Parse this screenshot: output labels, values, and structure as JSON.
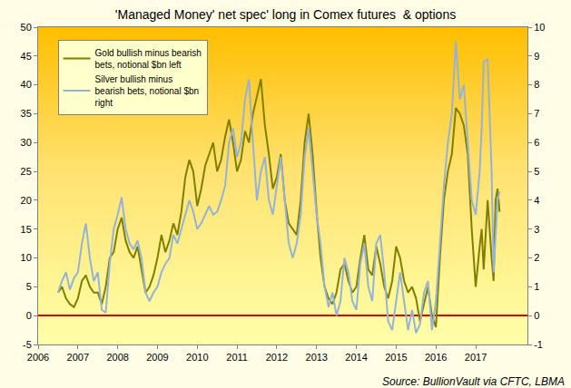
{
  "chart_data": {
    "type": "line",
    "title": "'Managed Money' net spec' long in Comex futures  & options",
    "annotations": [
      "Source: BullionVault via CFTC, LBMA"
    ],
    "x": [
      2006.5,
      2006.6,
      2006.7,
      2006.8,
      2006.9,
      2007.0,
      2007.1,
      2007.2,
      2007.3,
      2007.4,
      2007.5,
      2007.6,
      2007.7,
      2007.8,
      2007.9,
      2008.0,
      2008.1,
      2008.2,
      2008.3,
      2008.4,
      2008.5,
      2008.6,
      2008.7,
      2008.8,
      2008.9,
      2009.0,
      2009.1,
      2009.2,
      2009.3,
      2009.4,
      2009.5,
      2009.6,
      2009.7,
      2009.8,
      2009.9,
      2010.0,
      2010.1,
      2010.2,
      2010.3,
      2010.4,
      2010.5,
      2010.6,
      2010.7,
      2010.8,
      2010.9,
      2011.0,
      2011.1,
      2011.2,
      2011.3,
      2011.4,
      2011.5,
      2011.6,
      2011.7,
      2011.8,
      2011.9,
      2012.0,
      2012.1,
      2012.2,
      2012.3,
      2012.4,
      2012.5,
      2012.6,
      2012.7,
      2012.8,
      2012.9,
      2013.0,
      2013.1,
      2013.2,
      2013.3,
      2013.4,
      2013.5,
      2013.6,
      2013.7,
      2013.8,
      2013.9,
      2014.0,
      2014.1,
      2014.2,
      2014.3,
      2014.4,
      2014.5,
      2014.6,
      2014.7,
      2014.8,
      2014.9,
      2015.0,
      2015.1,
      2015.2,
      2015.3,
      2015.4,
      2015.5,
      2015.6,
      2015.7,
      2015.8,
      2015.9,
      2016.0,
      2016.1,
      2016.2,
      2016.3,
      2016.4,
      2016.5,
      2016.6,
      2016.7,
      2016.8,
      2016.9,
      2017.0,
      2017.1,
      2017.15,
      2017.2,
      2017.3,
      2017.4,
      2017.45,
      2017.5,
      2017.55,
      2017.6
    ],
    "series": [
      {
        "name": "Gold bullish minus bearish bets, notional $bn left",
        "color": "#7f7f00",
        "axis": "y",
        "values": [
          4,
          5,
          3,
          2,
          1.5,
          3,
          6,
          7,
          5,
          4,
          4,
          2,
          5,
          10,
          11,
          15,
          17,
          13,
          11,
          10,
          12,
          8,
          4,
          5,
          7,
          10,
          14,
          11,
          13,
          16,
          14,
          18,
          24,
          27,
          25,
          19,
          22,
          26,
          28,
          30,
          25,
          27,
          31,
          34,
          30,
          25,
          27,
          32,
          30,
          35,
          38,
          41,
          33,
          28,
          22,
          24,
          28,
          20,
          16,
          15,
          14,
          20,
          30,
          35,
          28,
          18,
          10,
          5,
          3,
          2,
          4,
          8,
          9,
          6,
          4,
          5,
          10,
          14,
          8,
          7,
          12,
          9,
          5,
          3,
          6,
          12,
          10,
          6,
          4,
          5,
          3,
          -1,
          2,
          5,
          0,
          -2,
          10,
          20,
          25,
          28,
          36,
          35,
          33,
          28,
          15,
          5,
          12,
          15,
          8,
          20,
          10,
          6,
          20,
          22,
          18
        ]
      },
      {
        "name": "Silver bullish minus bearish bets, notional $bn right",
        "color": "#95b3d7",
        "axis": "y2",
        "values": [
          0.8,
          1.2,
          1.5,
          0.9,
          1.3,
          1.5,
          2.5,
          3.2,
          2.0,
          1.2,
          1.5,
          0.2,
          0.1,
          1.8,
          3.0,
          3.5,
          4.1,
          3.0,
          2.5,
          2.3,
          2.6,
          2.0,
          0.8,
          0.5,
          0.8,
          1.0,
          1.5,
          1.8,
          2.0,
          2.8,
          2.5,
          3.0,
          3.5,
          4.0,
          3.6,
          3.0,
          3.2,
          3.5,
          3.8,
          3.5,
          3.6,
          4.0,
          4.5,
          6.0,
          6.5,
          5.5,
          6.0,
          7.5,
          8.2,
          6.0,
          4.0,
          5.0,
          5.5,
          4.0,
          3.5,
          4.5,
          5.5,
          4.0,
          2.5,
          2.0,
          2.5,
          3.5,
          5.5,
          6.5,
          5.0,
          3.5,
          2.5,
          1.0,
          0.3,
          0.8,
          0.0,
          0.5,
          2.0,
          1.5,
          0.5,
          0.2,
          1.8,
          2.5,
          1.0,
          0.5,
          2.5,
          2.8,
          1.5,
          -0.2,
          -0.5,
          0.5,
          1.5,
          0.5,
          -0.5,
          0.2,
          -0.6,
          -0.3,
          0.8,
          1.2,
          -0.5,
          0.5,
          2.5,
          4.5,
          6.0,
          7.0,
          9.5,
          7.5,
          8.0,
          6.0,
          4.0,
          3.5,
          5.0,
          6.5,
          8.8,
          8.9,
          5.0,
          1.5,
          3.0,
          4.0,
          4.3
        ]
      }
    ],
    "xlim": [
      2006,
      2018.3
    ],
    "xticks": [
      2006,
      2007,
      2008,
      2009,
      2010,
      2011,
      2012,
      2013,
      2014,
      2015,
      2016,
      2017
    ],
    "ylim": [
      -5,
      50
    ],
    "yticks": [
      -5,
      0,
      5,
      10,
      15,
      20,
      25,
      30,
      35,
      40,
      45,
      50
    ],
    "y2lim": [
      -1,
      10
    ],
    "y2ticks": [
      -1,
      0,
      1,
      2,
      3,
      4,
      5,
      6,
      7,
      8,
      9,
      10
    ],
    "legend": "upper left",
    "grid": false
  }
}
